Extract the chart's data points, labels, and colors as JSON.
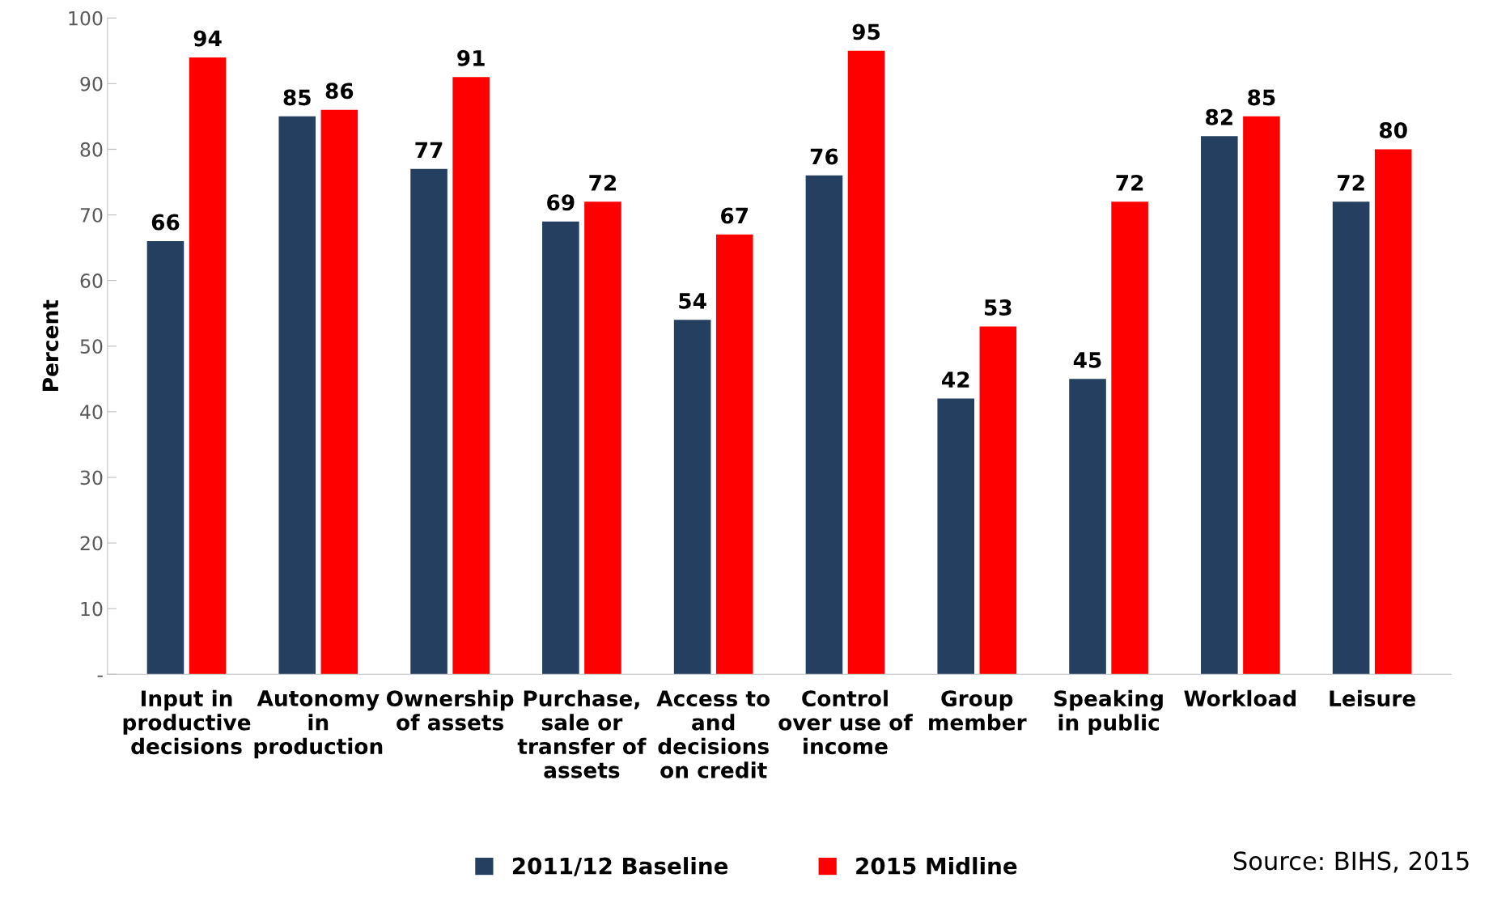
{
  "chart_data": {
    "type": "bar",
    "ylabel": "Percent",
    "categories": [
      "Input in\nproductive\ndecisions",
      "Autonomy\nin\nproduction",
      "Ownership\nof assets",
      "Purchase,\nsale or\ntransfer of\nassets",
      "Access to\nand\ndecisions\non credit",
      "Control\nover use of\nincome",
      "Group\nmember",
      "Speaking\nin public",
      "Workload",
      "Leisure"
    ],
    "series": [
      {
        "name": "2011/12 Baseline",
        "color": "#243f60",
        "values": [
          66,
          85,
          77,
          69,
          54,
          76,
          42,
          45,
          82,
          72
        ]
      },
      {
        "name": "2015 Midline",
        "color": "#ff0000",
        "values": [
          94,
          86,
          91,
          72,
          67,
          95,
          53,
          72,
          85,
          80
        ]
      }
    ],
    "ylim": [
      0,
      100
    ],
    "yticks": [
      {
        "value": 0,
        "label": "-"
      },
      10,
      20,
      30,
      40,
      50,
      60,
      70,
      80,
      90,
      100
    ],
    "data_labels": true,
    "legend": "bottom",
    "grid": false,
    "annotations": [
      "Source: BIHS, 2015"
    ]
  }
}
